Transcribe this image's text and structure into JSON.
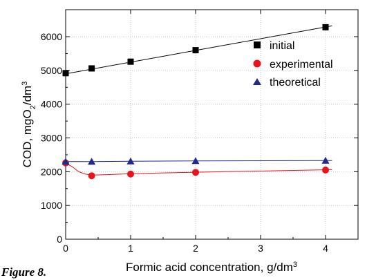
{
  "caption": "Figure 8.",
  "chart_data": {
    "type": "line",
    "xlabel": "Formic acid concentration, g/dm",
    "xlabel_sup": "3",
    "ylabel_parts": [
      "COD, mgO",
      "2",
      "/dm",
      "3"
    ],
    "xlim": [
      0,
      4.5
    ],
    "ylim": [
      0,
      6800
    ],
    "xticks": [
      0,
      1,
      2,
      3,
      4
    ],
    "yticks": [
      0,
      1000,
      2000,
      3000,
      4000,
      5000,
      6000
    ],
    "grid": true,
    "legend_position": "top-right",
    "series": [
      {
        "name": "initial",
        "marker": "square",
        "color": "#000000",
        "x": [
          0,
          0.4,
          1,
          2,
          4
        ],
        "y": [
          4920,
          5060,
          5260,
          5600,
          6280
        ],
        "fit_x": [
          0,
          4.1
        ],
        "fit_y": [
          4900,
          6320
        ]
      },
      {
        "name": "experimental",
        "marker": "circle",
        "color": "#e8141b",
        "x": [
          0,
          0.4,
          1,
          2,
          4
        ],
        "y": [
          2260,
          1880,
          1930,
          1980,
          2050
        ],
        "fit_x": [
          0,
          0.1,
          0.2,
          0.3,
          0.4,
          0.6,
          1,
          1.5,
          2,
          3,
          4.1
        ],
        "fit_y": [
          2250,
          2150,
          2000,
          1930,
          1900,
          1910,
          1940,
          1965,
          1985,
          2020,
          2060
        ]
      },
      {
        "name": "theoretical",
        "marker": "triangle",
        "color": "#1f2a8c",
        "x": [
          0,
          0.4,
          1,
          2,
          4
        ],
        "y": [
          2300,
          2300,
          2310,
          2320,
          2330
        ],
        "fit_x": [
          0,
          0.4,
          1,
          2,
          4.1
        ],
        "fit_y": [
          2300,
          2300,
          2310,
          2320,
          2330
        ]
      }
    ]
  }
}
